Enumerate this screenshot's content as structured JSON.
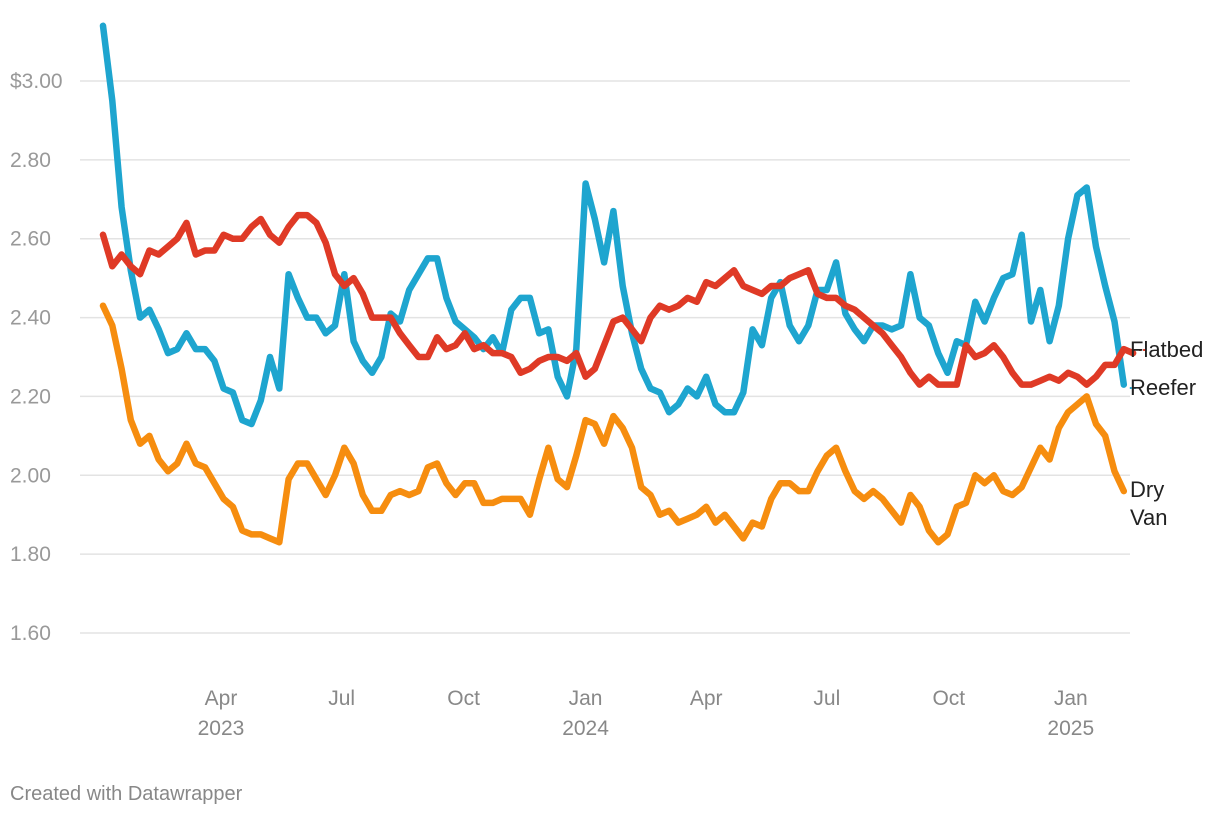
{
  "chart_data": {
    "type": "line",
    "title": "",
    "xlabel": "",
    "ylabel": "",
    "x_start": "2023-01-02",
    "x_step_days": 7,
    "ylim": [
      1.6,
      3.15
    ],
    "y_ticks": [
      {
        "value": 3.0,
        "label": "$3.00"
      },
      {
        "value": 2.8,
        "label": "2.80"
      },
      {
        "value": 2.6,
        "label": "2.60"
      },
      {
        "value": 2.4,
        "label": "2.40"
      },
      {
        "value": 2.2,
        "label": "2.20"
      },
      {
        "value": 2.0,
        "label": "2.00"
      },
      {
        "value": 1.8,
        "label": "1.80"
      },
      {
        "value": 1.6,
        "label": "1.60"
      }
    ],
    "x_ticks": [
      {
        "date": "2023-04-01",
        "label": "Apr",
        "year": "2023"
      },
      {
        "date": "2023-07-01",
        "label": "Jul",
        "year": ""
      },
      {
        "date": "2023-10-01",
        "label": "Oct",
        "year": ""
      },
      {
        "date": "2024-01-01",
        "label": "Jan",
        "year": "2024"
      },
      {
        "date": "2024-04-01",
        "label": "Apr",
        "year": ""
      },
      {
        "date": "2024-07-01",
        "label": "Jul",
        "year": ""
      },
      {
        "date": "2024-10-01",
        "label": "Oct",
        "year": ""
      },
      {
        "date": "2025-01-01",
        "label": "Jan",
        "year": "2025"
      }
    ],
    "grid": true,
    "legend": "direct labels at right end",
    "series": [
      {
        "name": "Reefer",
        "label_lines": [
          "Reefer"
        ],
        "color": "#1ea5cf",
        "values": [
          3.14,
          2.95,
          2.68,
          2.52,
          2.4,
          2.42,
          2.37,
          2.31,
          2.32,
          2.36,
          2.32,
          2.32,
          2.29,
          2.22,
          2.21,
          2.14,
          2.13,
          2.19,
          2.3,
          2.22,
          2.51,
          2.45,
          2.4,
          2.4,
          2.36,
          2.38,
          2.51,
          2.34,
          2.29,
          2.26,
          2.3,
          2.41,
          2.39,
          2.47,
          2.51,
          2.55,
          2.55,
          2.45,
          2.39,
          2.37,
          2.35,
          2.32,
          2.35,
          2.31,
          2.42,
          2.45,
          2.45,
          2.36,
          2.37,
          2.25,
          2.2,
          2.32,
          2.74,
          2.65,
          2.54,
          2.67,
          2.48,
          2.36,
          2.27,
          2.22,
          2.21,
          2.16,
          2.18,
          2.22,
          2.2,
          2.25,
          2.18,
          2.16,
          2.16,
          2.21,
          2.37,
          2.33,
          2.45,
          2.49,
          2.38,
          2.34,
          2.38,
          2.47,
          2.47,
          2.54,
          2.41,
          2.37,
          2.34,
          2.38,
          2.38,
          2.37,
          2.38,
          2.51,
          2.4,
          2.38,
          2.31,
          2.26,
          2.34,
          2.33,
          2.44,
          2.39,
          2.45,
          2.5,
          2.51,
          2.61,
          2.39,
          2.47,
          2.34,
          2.43,
          2.6,
          2.71,
          2.73,
          2.58,
          2.48,
          2.39,
          2.23
        ]
      },
      {
        "name": "Flatbed",
        "label_lines": [
          "Flatbed"
        ],
        "color": "#df3a26",
        "values": [
          2.61,
          2.53,
          2.56,
          2.53,
          2.51,
          2.57,
          2.56,
          2.58,
          2.6,
          2.64,
          2.56,
          2.57,
          2.57,
          2.61,
          2.6,
          2.6,
          2.63,
          2.65,
          2.61,
          2.59,
          2.63,
          2.66,
          2.66,
          2.64,
          2.59,
          2.51,
          2.48,
          2.5,
          2.46,
          2.4,
          2.4,
          2.4,
          2.36,
          2.33,
          2.3,
          2.3,
          2.35,
          2.32,
          2.33,
          2.36,
          2.32,
          2.33,
          2.31,
          2.31,
          2.3,
          2.26,
          2.27,
          2.29,
          2.3,
          2.3,
          2.29,
          2.31,
          2.25,
          2.27,
          2.33,
          2.39,
          2.4,
          2.37,
          2.34,
          2.4,
          2.43,
          2.42,
          2.43,
          2.45,
          2.44,
          2.49,
          2.48,
          2.5,
          2.52,
          2.48,
          2.47,
          2.46,
          2.48,
          2.48,
          2.5,
          2.51,
          2.52,
          2.46,
          2.45,
          2.45,
          2.43,
          2.42,
          2.4,
          2.38,
          2.36,
          2.33,
          2.3,
          2.26,
          2.23,
          2.25,
          2.23,
          2.23,
          2.23,
          2.33,
          2.3,
          2.31,
          2.33,
          2.3,
          2.26,
          2.23,
          2.23,
          2.24,
          2.25,
          2.24,
          2.26,
          2.25,
          2.23,
          2.25,
          2.28,
          2.28,
          2.32,
          2.31
        ]
      },
      {
        "name": "Dry Van",
        "label_lines": [
          "Dry",
          "Van"
        ],
        "color": "#f68d0f",
        "values": [
          2.43,
          2.38,
          2.27,
          2.14,
          2.08,
          2.1,
          2.04,
          2.01,
          2.03,
          2.08,
          2.03,
          2.02,
          1.98,
          1.94,
          1.92,
          1.86,
          1.85,
          1.85,
          1.84,
          1.83,
          1.99,
          2.03,
          2.03,
          1.99,
          1.95,
          2.0,
          2.07,
          2.03,
          1.95,
          1.91,
          1.91,
          1.95,
          1.96,
          1.95,
          1.96,
          2.02,
          2.03,
          1.98,
          1.95,
          1.98,
          1.98,
          1.93,
          1.93,
          1.94,
          1.94,
          1.94,
          1.9,
          1.99,
          2.07,
          1.99,
          1.97,
          2.05,
          2.14,
          2.13,
          2.08,
          2.15,
          2.12,
          2.07,
          1.97,
          1.95,
          1.9,
          1.91,
          1.88,
          1.89,
          1.9,
          1.92,
          1.88,
          1.9,
          1.87,
          1.84,
          1.88,
          1.87,
          1.94,
          1.98,
          1.98,
          1.96,
          1.96,
          2.01,
          2.05,
          2.07,
          2.01,
          1.96,
          1.94,
          1.96,
          1.94,
          1.91,
          1.88,
          1.95,
          1.92,
          1.86,
          1.83,
          1.85,
          1.92,
          1.93,
          2.0,
          1.98,
          2.0,
          1.96,
          1.95,
          1.97,
          2.02,
          2.07,
          2.04,
          2.12,
          2.16,
          2.18,
          2.2,
          2.13,
          2.1,
          2.01,
          1.96
        ]
      }
    ]
  },
  "footer": {
    "credit": "Created with Datawrapper"
  }
}
